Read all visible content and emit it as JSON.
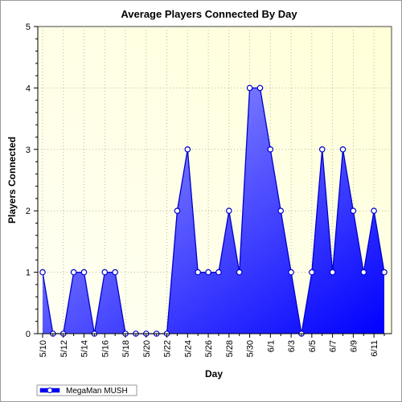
{
  "chart_data": {
    "type": "area",
    "title": "Average Players Connected By Day",
    "xlabel": "Day",
    "ylabel": "Players Connected",
    "ylim": [
      0,
      5
    ],
    "yticks": [
      "0",
      "1",
      "2",
      "3",
      "4",
      "5"
    ],
    "xtick_labels": [
      "5/10",
      "5/12",
      "5/14",
      "5/16",
      "5/18",
      "5/20",
      "5/22",
      "5/24",
      "5/26",
      "5/28",
      "5/30",
      "6/1",
      "6/3",
      "6/5",
      "6/7",
      "6/9",
      "6/11"
    ],
    "grid": true,
    "legend_position": "bottom-left",
    "colors": {
      "fill_top": "#a8a8ff",
      "fill_bottom": "#0000ff",
      "line": "#0000cc",
      "plot_bg": "#ffffe6"
    },
    "series": [
      {
        "name": "MegaMan MUSH",
        "x": [
          "5/10",
          "5/11",
          "5/12",
          "5/13",
          "5/14",
          "5/15",
          "5/16",
          "5/17",
          "5/18",
          "5/19",
          "5/20",
          "5/21",
          "5/22",
          "5/23",
          "5/24",
          "5/25",
          "5/26",
          "5/27",
          "5/28",
          "5/29",
          "5/30",
          "5/31",
          "6/1",
          "6/2",
          "6/3",
          "6/4",
          "6/5",
          "6/6",
          "6/7",
          "6/8",
          "6/9",
          "6/10",
          "6/11",
          "6/12"
        ],
        "values": [
          1,
          0,
          0,
          1,
          1,
          0,
          1,
          1,
          0,
          0,
          0,
          0,
          0,
          2,
          3,
          1,
          1,
          1,
          2,
          1,
          4,
          4,
          3,
          2,
          1,
          0,
          1,
          3,
          1,
          3,
          2,
          1,
          2,
          1
        ]
      }
    ]
  }
}
